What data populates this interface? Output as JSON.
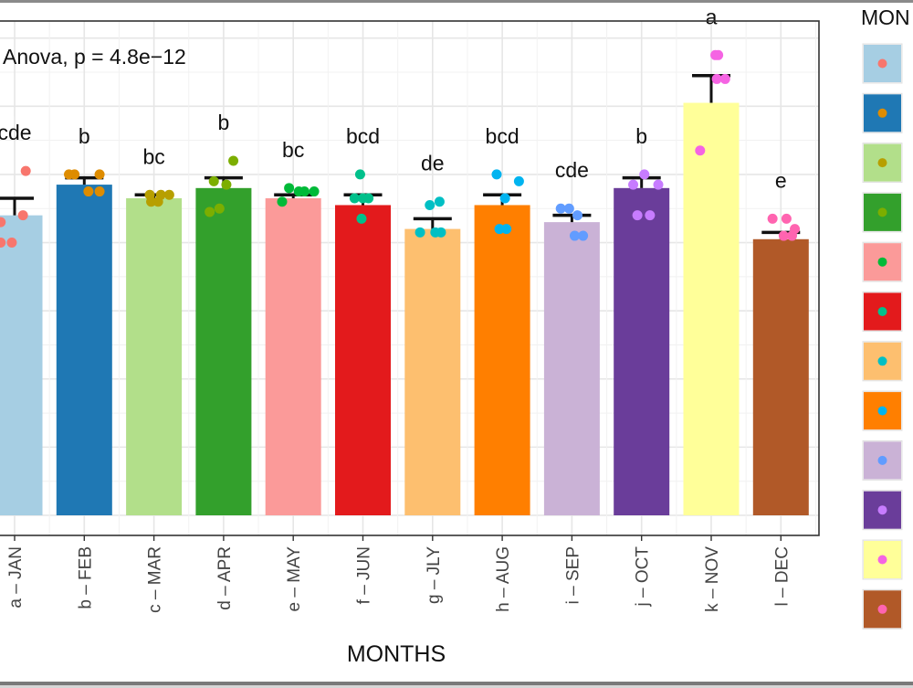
{
  "chart_data": {
    "type": "bar",
    "annotation": "Anova, p = 4.8e−12",
    "xlabel": "MONTHS",
    "legend_title": "MON",
    "categories": [
      "a – JAN",
      "b – FEB",
      "c – MAR",
      "d – APR",
      "e – MAY",
      "f – JUN",
      "g – JLY",
      "h – AUG",
      "i – SEP",
      "j – OCT",
      "k – NOV",
      "l – DEC"
    ],
    "values": [
      8.8,
      9.7,
      9.3,
      9.6,
      9.3,
      9.1,
      8.4,
      9.1,
      8.6,
      9.6,
      12.1,
      8.1
    ],
    "error_upper": [
      9.3,
      9.9,
      9.4,
      9.9,
      9.4,
      9.4,
      8.7,
      9.4,
      8.8,
      9.9,
      12.9,
      8.3
    ],
    "letters": [
      "cde",
      "b",
      "bc",
      "b",
      "bc",
      "bcd",
      "de",
      "bcd",
      "cde",
      "b",
      "a",
      "e"
    ],
    "points": [
      [
        [
          10.1,
          0.4
        ],
        [
          8.6,
          -0.5
        ],
        [
          8.8,
          0.3
        ],
        [
          8.0,
          -0.5
        ],
        [
          8.0,
          -0.1
        ]
      ],
      [
        [
          10.0,
          -0.55
        ],
        [
          10.0,
          -0.35
        ],
        [
          10.0,
          0.55
        ],
        [
          9.5,
          0.15
        ],
        [
          9.5,
          0.55
        ]
      ],
      [
        [
          9.4,
          -0.15
        ],
        [
          9.4,
          0.25
        ],
        [
          9.4,
          0.55
        ],
        [
          9.2,
          -0.1
        ],
        [
          9.2,
          0.15
        ]
      ],
      [
        [
          9.8,
          -0.35
        ],
        [
          10.4,
          0.35
        ],
        [
          9.7,
          0.1
        ],
        [
          8.9,
          -0.5
        ],
        [
          9.0,
          -0.15
        ]
      ],
      [
        [
          9.5,
          0.2
        ],
        [
          9.5,
          0.4
        ],
        [
          9.2,
          -0.4
        ],
        [
          9.6,
          -0.15
        ],
        [
          9.5,
          0.75
        ]
      ],
      [
        [
          10.0,
          -0.1
        ],
        [
          9.3,
          -0.3
        ],
        [
          8.7,
          -0.05
        ],
        [
          9.3,
          0.0
        ],
        [
          9.3,
          0.2
        ]
      ],
      [
        [
          9.1,
          -0.1
        ],
        [
          8.3,
          -0.45
        ],
        [
          9.2,
          0.25
        ],
        [
          8.3,
          0.1
        ],
        [
          8.3,
          0.3
        ]
      ],
      [
        [
          10.0,
          -0.2
        ],
        [
          9.8,
          0.6
        ],
        [
          9.3,
          0.1
        ],
        [
          8.4,
          -0.1
        ],
        [
          8.4,
          0.15
        ]
      ],
      [
        [
          9.0,
          -0.4
        ],
        [
          9.0,
          -0.1
        ],
        [
          8.8,
          0.2
        ],
        [
          8.2,
          0.1
        ],
        [
          8.2,
          0.4
        ]
      ],
      [
        [
          9.7,
          -0.3
        ],
        [
          10.0,
          0.1
        ],
        [
          9.7,
          0.6
        ],
        [
          8.8,
          -0.15
        ],
        [
          8.8,
          0.3
        ]
      ],
      [
        [
          13.5,
          0.15
        ],
        [
          12.8,
          0.2
        ],
        [
          12.8,
          0.5
        ],
        [
          10.7,
          -0.4
        ],
        [
          13.5,
          0.25
        ]
      ],
      [
        [
          8.7,
          -0.3
        ],
        [
          8.7,
          0.2
        ],
        [
          8.4,
          0.5
        ],
        [
          8.2,
          0.1
        ],
        [
          8.2,
          0.4
        ]
      ]
    ],
    "ylim": [
      0,
      14.5
    ],
    "bar_colors": [
      "#a6cee3",
      "#1f78b4",
      "#b2df8a",
      "#33a02c",
      "#fb9a99",
      "#e31a1c",
      "#fdbf6f",
      "#ff7f00",
      "#cab2d6",
      "#6a3d9a",
      "#ffff99",
      "#b15928"
    ],
    "point_colors": [
      "#f8766d",
      "#de8c00",
      "#b79f00",
      "#7cae00",
      "#00ba38",
      "#00c08b",
      "#00bfc4",
      "#00b4f0",
      "#619cff",
      "#c77cff",
      "#f564e3",
      "#ff64b0"
    ],
    "grid": true,
    "legend_position": "right"
  }
}
